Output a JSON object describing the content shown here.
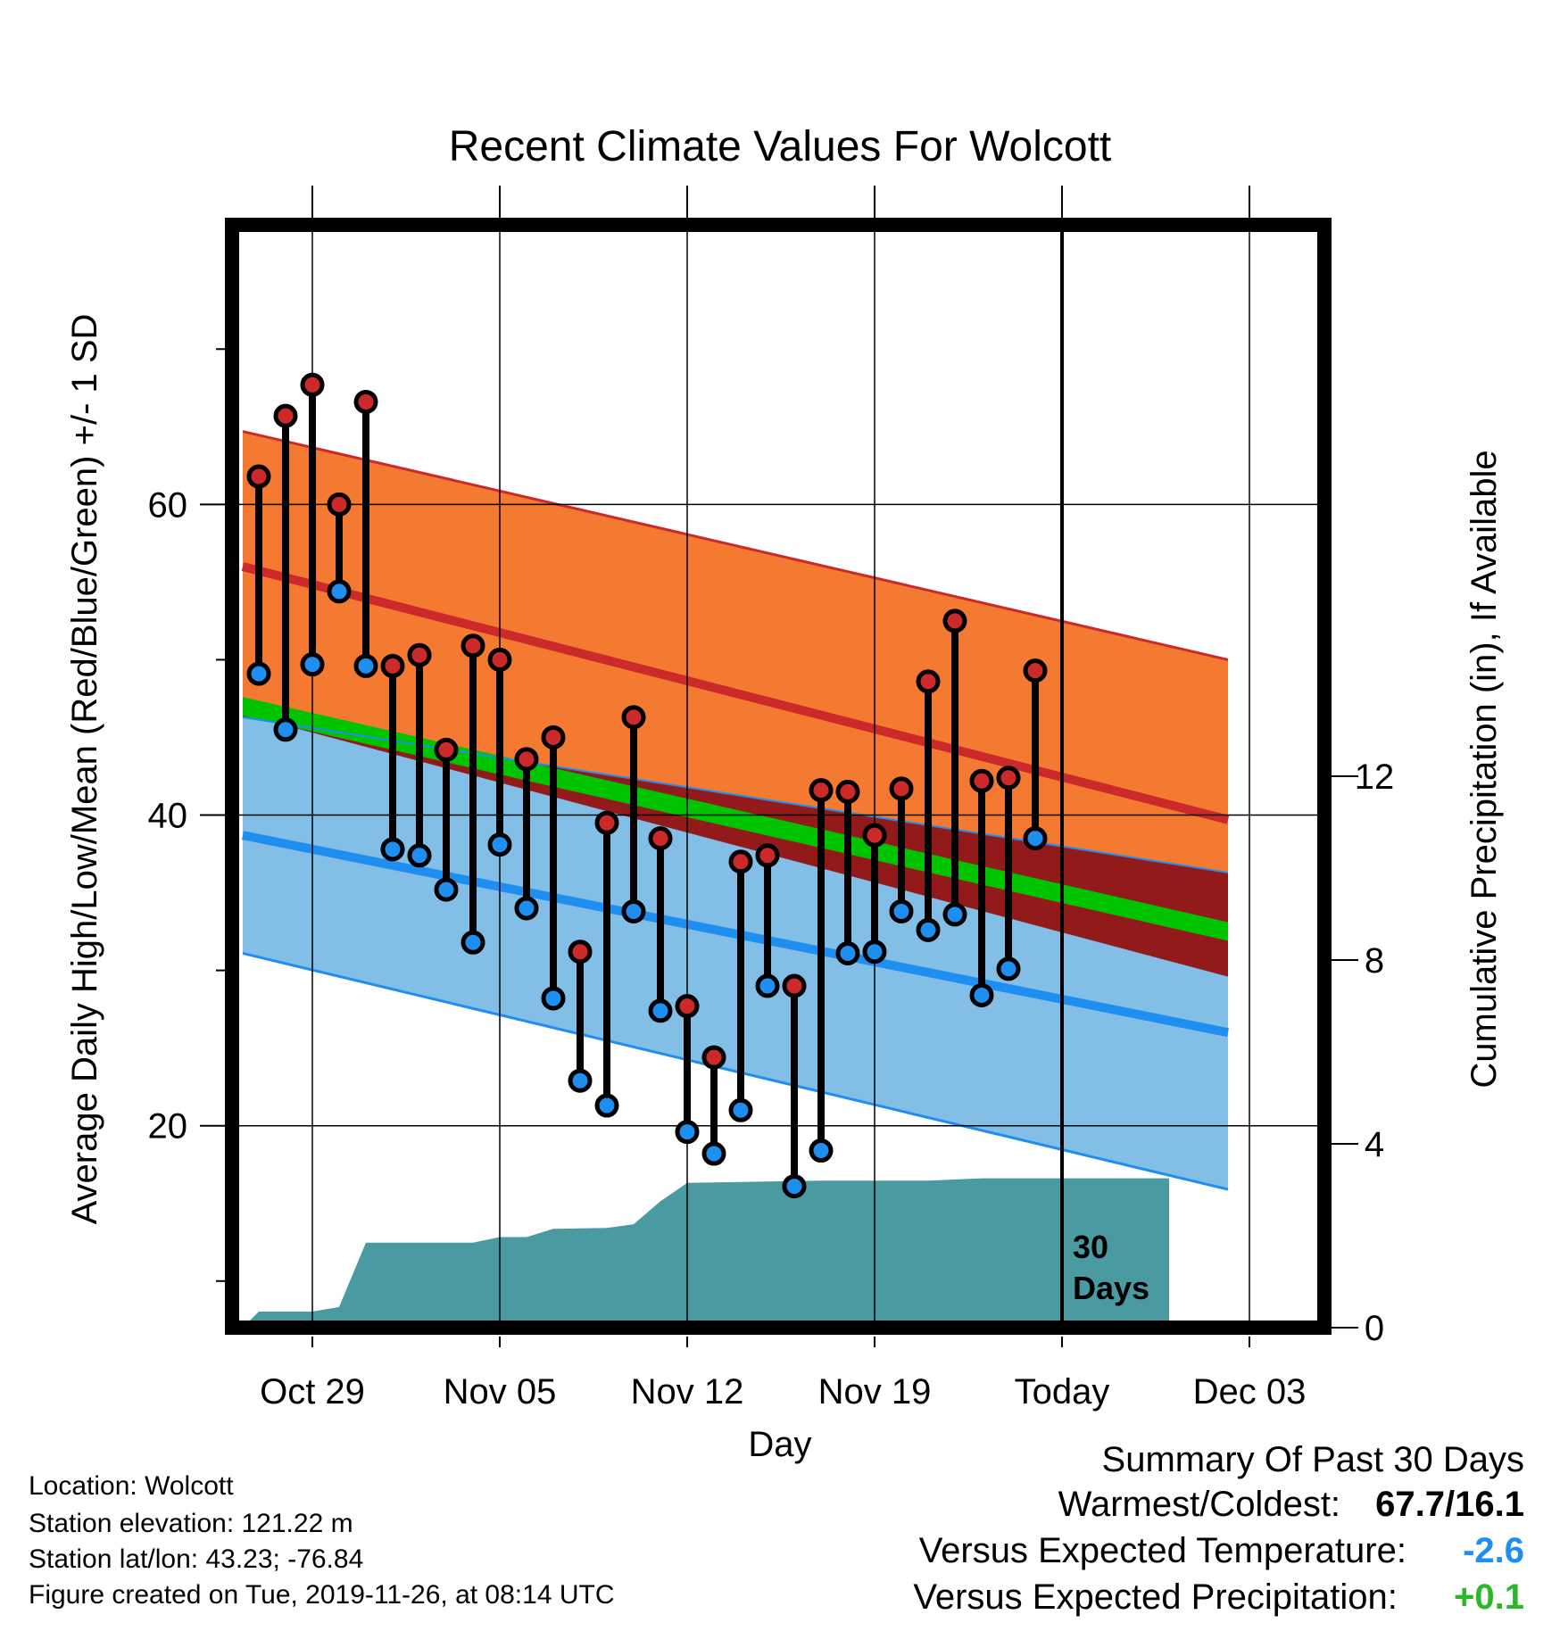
{
  "chart_data": {
    "type": "line",
    "title": "Recent Climate Values For Wolcott",
    "xlabel": "Day",
    "ylabel_left": "Average Daily High/Low/Mean (Red/Blue/Green) +/- 1 SD",
    "ylabel_right": "Cumulative Precipitation (in), If Available",
    "x_ticks": [
      "Oct 29",
      "Nov 05",
      "Nov 12",
      "Nov 19",
      "Today",
      "Dec 03"
    ],
    "today_marker_label": [
      "30",
      "Days"
    ],
    "y_left_range": [
      7,
      78
    ],
    "y_left_ticks": [
      20,
      40,
      60
    ],
    "y_right_range": [
      0,
      24
    ],
    "y_right_ticks": [
      0,
      4,
      8,
      12
    ],
    "grid": true,
    "normal_high": {
      "start": 56,
      "end": 39.7
    },
    "normal_high_plus_sd": {
      "start": 64.7,
      "end": 50
    },
    "normal_low": {
      "start": 38.7,
      "end": 26
    },
    "normal_low_minus_sd": {
      "start": 31.1,
      "end": 15.9
    },
    "normal_high_minus_sd": {
      "start": 46.5,
      "end": 29.6
    },
    "normal_mean": {
      "start": 47,
      "end": 32.5
    },
    "normal_low_plus_sd": {
      "start": 46.3,
      "end": 36.3
    },
    "days": [
      {
        "x": -2.0,
        "high": 61.8,
        "low": 49.1
      },
      {
        "x": -1.0,
        "high": 65.7,
        "low": 45.5
      },
      {
        "x": 0.0,
        "high": 67.7,
        "low": 49.7
      },
      {
        "x": 1.0,
        "high": 60.0,
        "low": 54.4
      },
      {
        "x": 2.0,
        "high": 66.6,
        "low": 49.6
      },
      {
        "x": 3.0,
        "high": 49.6,
        "low": 37.8
      },
      {
        "x": 4.0,
        "high": 50.3,
        "low": 37.4
      },
      {
        "x": 5.0,
        "high": 44.2,
        "low": 35.2
      },
      {
        "x": 6.0,
        "high": 50.9,
        "low": 31.8
      },
      {
        "x": 7.0,
        "high": 50.0,
        "low": 38.1
      },
      {
        "x": 8.0,
        "high": 43.6,
        "low": 34.0
      },
      {
        "x": 9.0,
        "high": 45.0,
        "low": 28.2
      },
      {
        "x": 10.0,
        "high": 31.2,
        "low": 22.9
      },
      {
        "x": 11.0,
        "high": 39.5,
        "low": 21.3
      },
      {
        "x": 12.0,
        "high": 46.3,
        "low": 33.8
      },
      {
        "x": 13.0,
        "high": 38.5,
        "low": 27.4
      },
      {
        "x": 14.0,
        "high": 27.7,
        "low": 19.6
      },
      {
        "x": 15.0,
        "high": 24.4,
        "low": 18.2
      },
      {
        "x": 16.0,
        "high": 37.0,
        "low": 21.0
      },
      {
        "x": 17.0,
        "high": 37.4,
        "low": 29.0
      },
      {
        "x": 18.0,
        "high": 29.0,
        "low": 16.1
      },
      {
        "x": 19.0,
        "high": 41.6,
        "low": 18.4
      },
      {
        "x": 20.0,
        "high": 41.5,
        "low": 31.1
      },
      {
        "x": 21.0,
        "high": 38.7,
        "low": 31.2
      },
      {
        "x": 22.0,
        "high": 41.7,
        "low": 33.8
      },
      {
        "x": 23.0,
        "high": 48.6,
        "low": 32.6
      },
      {
        "x": 24.0,
        "high": 52.5,
        "low": 33.6
      },
      {
        "x": 25.0,
        "high": 42.2,
        "low": 28.4
      },
      {
        "x": 26.0,
        "high": 42.4,
        "low": 30.1
      },
      {
        "x": 27.0,
        "high": 49.3,
        "low": 38.5
      }
    ],
    "cumulative_precip": [
      {
        "x": -2.6,
        "y": 0.0
      },
      {
        "x": -2.0,
        "y": 0.35
      },
      {
        "x": 0.0,
        "y": 0.35
      },
      {
        "x": 1.0,
        "y": 0.45
      },
      {
        "x": 2.0,
        "y": 1.85
      },
      {
        "x": 6.0,
        "y": 1.85
      },
      {
        "x": 7.0,
        "y": 1.97
      },
      {
        "x": 8.0,
        "y": 1.97
      },
      {
        "x": 9.0,
        "y": 2.15
      },
      {
        "x": 11.0,
        "y": 2.17
      },
      {
        "x": 12.0,
        "y": 2.25
      },
      {
        "x": 13.0,
        "y": 2.75
      },
      {
        "x": 14.0,
        "y": 3.15
      },
      {
        "x": 19.0,
        "y": 3.2
      },
      {
        "x": 23.0,
        "y": 3.2
      },
      {
        "x": 25.0,
        "y": 3.25
      },
      {
        "x": 32.0,
        "y": 3.25
      }
    ]
  },
  "info": {
    "location": "Location: Wolcott",
    "elevation": "Station elevation: 121.22 m",
    "latlon": "Station lat/lon: 43.23; -76.84",
    "created": "Figure created on Tue, 2019-11-26, at 08:14 UTC"
  },
  "summary": {
    "title": "Summary Of Past 30 Days",
    "warm_cold_label": "Warmest/Coldest:",
    "warm_cold_value": "67.7/16.1",
    "temp_label": "Versus Expected Temperature:",
    "temp_value": "-2.6",
    "precip_label": "Versus Expected Precipitation:",
    "precip_value": "+0.1"
  },
  "colors": {
    "high_sd_band": "#f47a31",
    "low_sd_band": "#82bee6",
    "normal_high_line": "#cc2a2a",
    "normal_low_line": "#1e8ef0",
    "mean_band": "#00c400",
    "dark_red_band": "#921a1a",
    "precip_fill": "#4a9aa2",
    "high_dot": "#cc2a2a",
    "low_dot": "#1e8ef0",
    "temp_departure": "#1e8ef0",
    "precip_departure": "#2ab82a"
  }
}
